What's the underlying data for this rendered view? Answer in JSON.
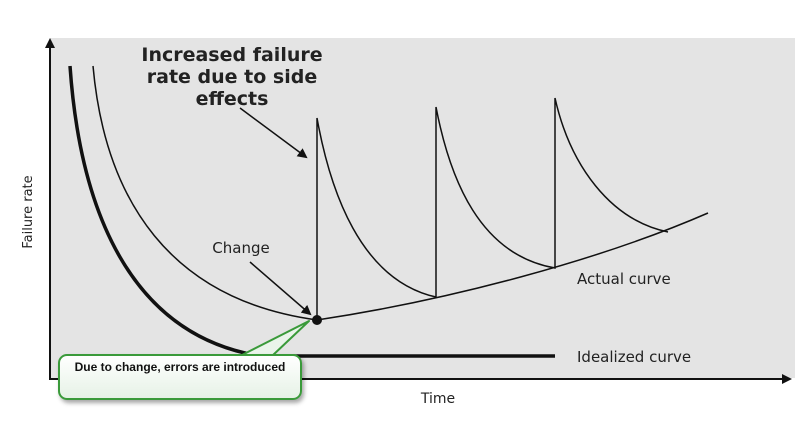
{
  "axes": {
    "y_label": "Failure rate",
    "x_label": "Time"
  },
  "annotations": {
    "side_effects": [
      "Increased failure",
      "rate due to side",
      "effects"
    ],
    "change": "Change",
    "actual_curve": "Actual curve",
    "idealized_curve": "Idealized curve",
    "callout": "Due to change, errors are introduced"
  },
  "colors": {
    "plot_background": "#e4e4e4",
    "curve": "#111111",
    "callout_border": "#3a9a3a",
    "callout_fill": "#eef6ee"
  }
}
